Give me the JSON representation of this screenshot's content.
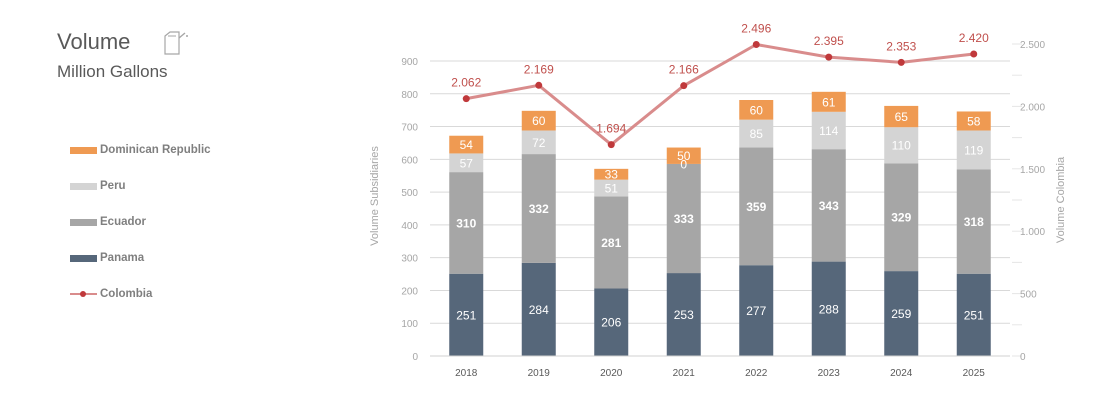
{
  "header": {
    "title": "Volume",
    "subtitle": "Million Gallons",
    "icon": "fuel-can-icon"
  },
  "colors": {
    "panama": "#56677a",
    "ecuador": "#a6a6a6",
    "peru": "#d4d4d4",
    "dominican_republic": "#ef9a52",
    "colombia_line": "#d98c8c",
    "colombia_marker": "#c0393b",
    "colombia_label": "#c0504d",
    "axis_text": "#a6a6a6",
    "gridline": "#d9d9d9"
  },
  "legend": {
    "items": [
      {
        "label": "Dominican Republic",
        "key": "dominican_republic",
        "kind": "bar"
      },
      {
        "label": "Peru",
        "key": "peru",
        "kind": "bar"
      },
      {
        "label": "Ecuador",
        "key": "ecuador",
        "kind": "bar"
      },
      {
        "label": "Panama",
        "key": "panama",
        "kind": "bar"
      },
      {
        "label": "Colombia",
        "key": "colombia",
        "kind": "line"
      }
    ]
  },
  "chart_data": {
    "type": "bar",
    "subtype": "stacked-bar-with-line-secondary-axis",
    "title": "Volume",
    "subtitle": "Million Gallons",
    "categories": [
      "2018",
      "2019",
      "2020",
      "2021",
      "2022",
      "2023",
      "2024",
      "2025"
    ],
    "series": [
      {
        "name": "Panama",
        "key": "panama",
        "axis": "left",
        "type": "bar",
        "values": [
          251,
          284,
          206,
          253,
          277,
          288,
          259,
          251
        ],
        "label_bold": false
      },
      {
        "name": "Ecuador",
        "key": "ecuador",
        "axis": "left",
        "type": "bar",
        "values": [
          310,
          332,
          281,
          333,
          359,
          343,
          329,
          318
        ],
        "label_bold": true
      },
      {
        "name": "Peru",
        "key": "peru",
        "axis": "left",
        "type": "bar",
        "values": [
          57,
          72,
          51,
          0,
          85,
          114,
          110,
          119
        ],
        "label_bold": false
      },
      {
        "name": "Dominican Republic",
        "key": "dominican_republic",
        "axis": "left",
        "type": "bar",
        "values": [
          54,
          60,
          33,
          50,
          60,
          61,
          65,
          58
        ],
        "label_bold": false
      },
      {
        "name": "Colombia",
        "key": "colombia",
        "axis": "right",
        "type": "line",
        "values": [
          2062,
          2169,
          1694,
          2166,
          2496,
          2395,
          2353,
          2420
        ],
        "labels": [
          "2.062",
          "2.169",
          "1.694",
          "2.166",
          "2.496",
          "2.395",
          "2.353",
          "2.420"
        ]
      }
    ],
    "left_axis": {
      "label": "Volume Subsidiaries",
      "range": [
        0,
        900
      ],
      "ticks": [
        "0",
        "100",
        "200",
        "300",
        "400",
        "500",
        "600",
        "700",
        "800",
        "900"
      ],
      "tick_values": [
        0,
        100,
        200,
        300,
        400,
        500,
        600,
        700,
        800,
        900
      ]
    },
    "right_axis": {
      "label": "Volume Colombia",
      "range": [
        0,
        2500
      ],
      "ticks": [
        "0",
        "500",
        "1.000",
        "1.500",
        "2.000",
        "2.500"
      ],
      "tick_values": [
        0,
        500,
        1000,
        1500,
        2000,
        2500
      ]
    },
    "grid": true,
    "legend_position": "left"
  }
}
